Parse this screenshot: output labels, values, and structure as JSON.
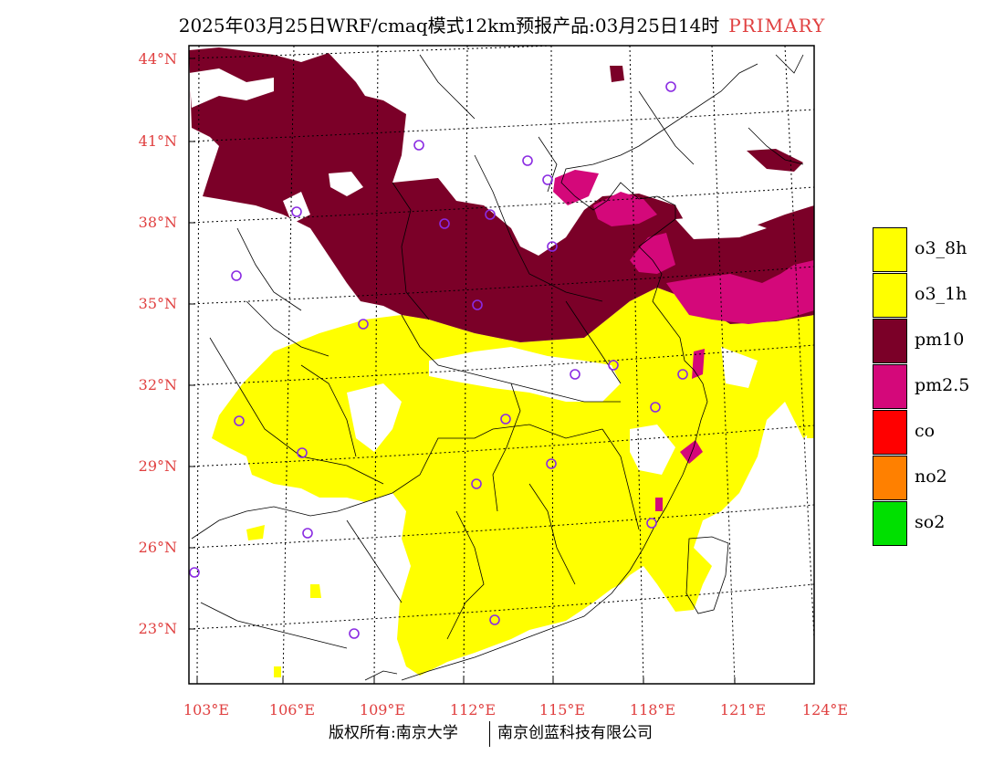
{
  "title": {
    "text": "2025年03月25日WRF/cmaq模式12km预报产品:03月25日14时",
    "tag": "PRIMARY",
    "tag_color": "#e04040"
  },
  "map": {
    "lat_labels": [
      "44°N",
      "41°N",
      "38°N",
      "35°N",
      "32°N",
      "29°N",
      "26°N",
      "23°N"
    ],
    "lon_labels": [
      "103°E",
      "106°E",
      "109°E",
      "112°E",
      "115°E",
      "118°E",
      "121°E",
      "124°E"
    ],
    "label_color": "#e04040",
    "station_marker_color": "#8a2be2"
  },
  "legend": {
    "items": [
      {
        "label": "o3_8h",
        "color": "#ffff00"
      },
      {
        "label": "o3_1h",
        "color": "#ffff00"
      },
      {
        "label": "pm10",
        "color": "#7b0028"
      },
      {
        "label": "pm2.5",
        "color": "#d4087a"
      },
      {
        "label": "co",
        "color": "#ff0000"
      },
      {
        "label": "no2",
        "color": "#ff8000"
      },
      {
        "label": "so2",
        "color": "#00e000"
      }
    ]
  },
  "footer": {
    "copyright": "版权所有:南京大学",
    "company": "南京创蓝科技有限公司"
  }
}
